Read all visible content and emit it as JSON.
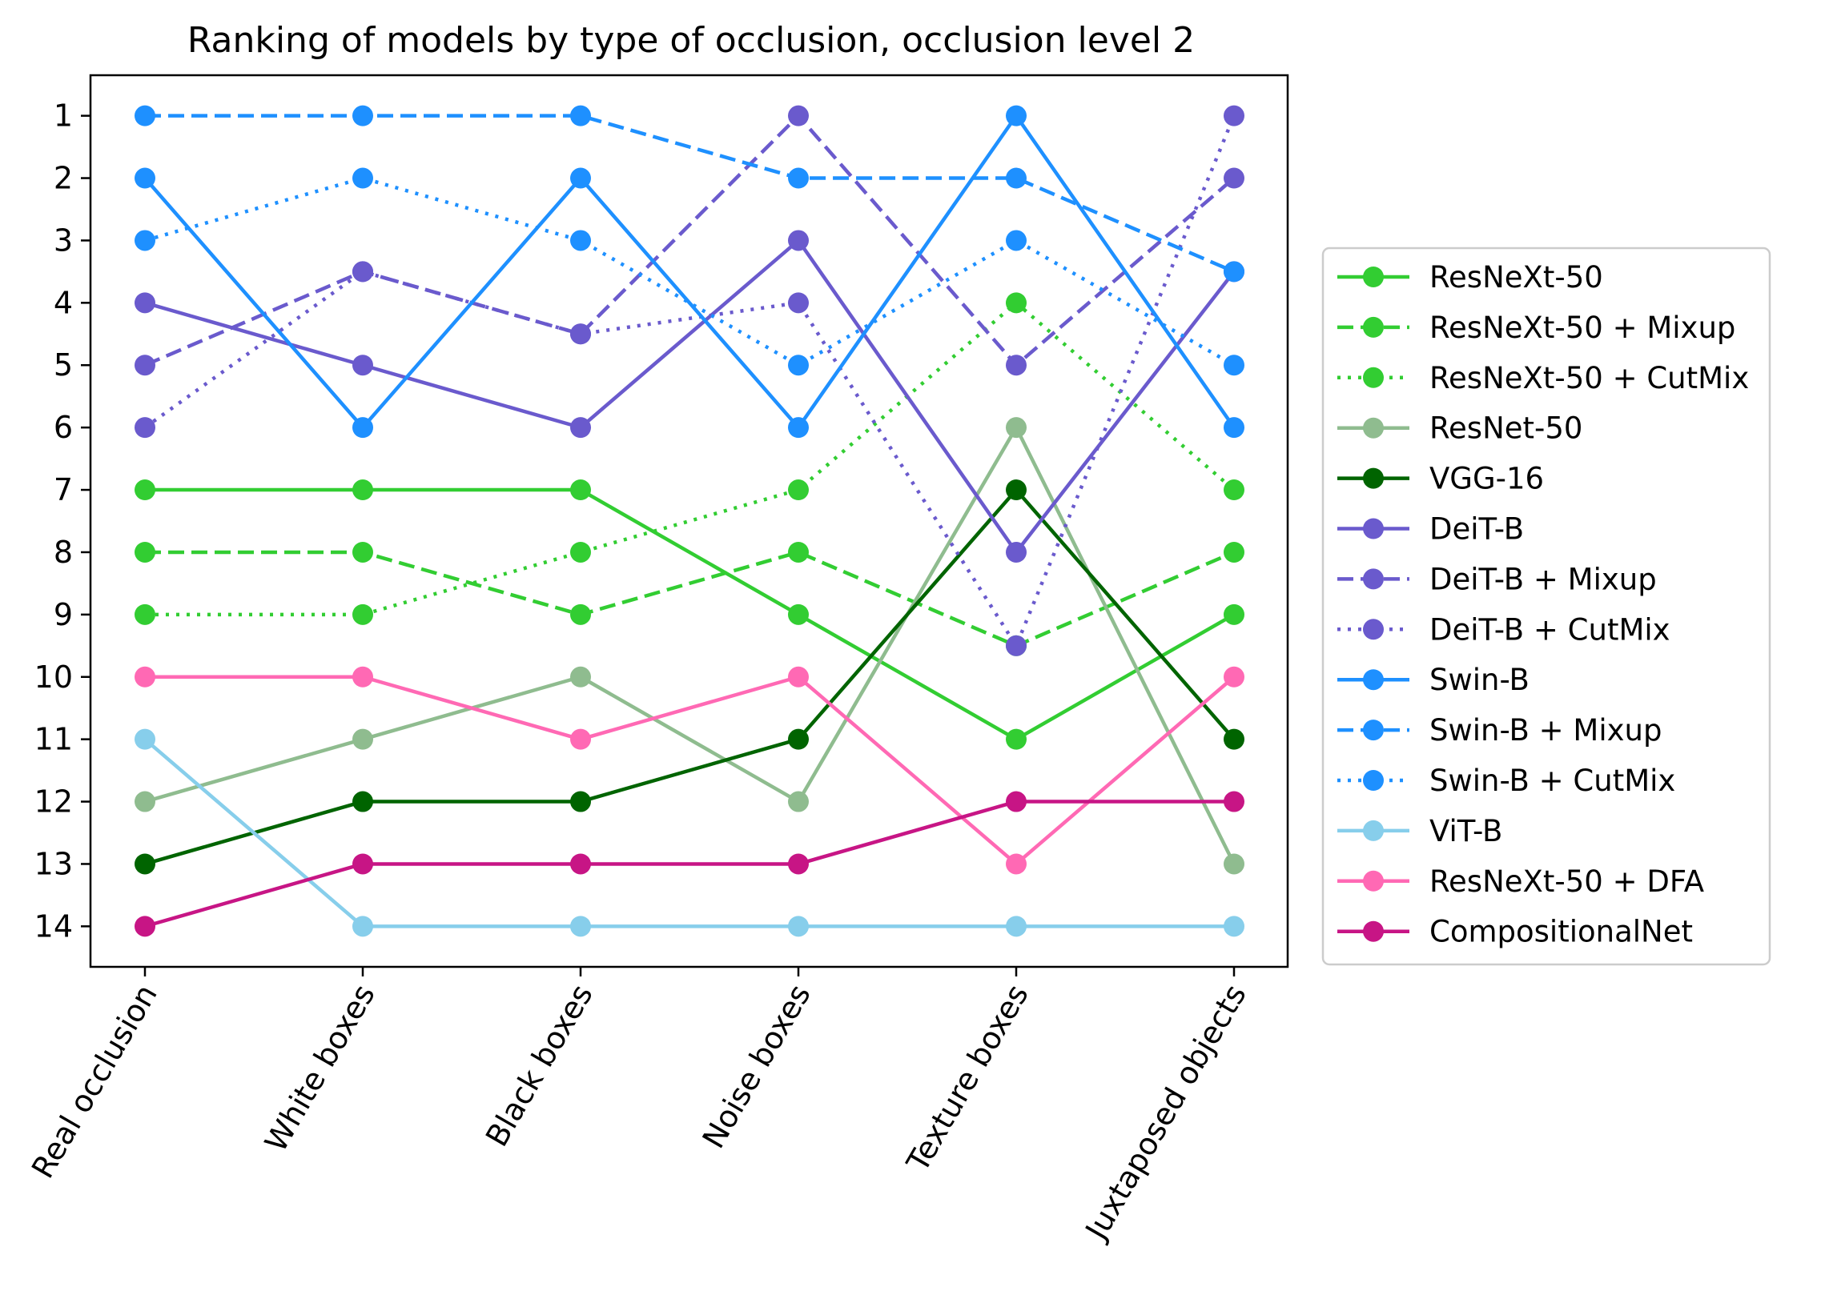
{
  "chart_data": {
    "type": "line",
    "title": "Ranking of models by type of occlusion, occlusion level 2",
    "xlabel": "",
    "ylabel": "",
    "categories": [
      "Real occlusion",
      "White boxes",
      "Black boxes",
      "Noise boxes",
      "Texture boxes",
      "Juxtaposed objects"
    ],
    "yticks": [
      "1",
      "2",
      "3",
      "4",
      "5",
      "6",
      "7",
      "8",
      "9",
      "10",
      "11",
      "12",
      "13",
      "14"
    ],
    "ylim": [
      14.65,
      0.35
    ],
    "y_inverted": true,
    "grid": false,
    "legend_position": "right",
    "series": [
      {
        "name": "ResNeXt-50",
        "color": "#32cd32",
        "style": "solid",
        "values": [
          7,
          7,
          7,
          9,
          11,
          9
        ]
      },
      {
        "name": "ResNeXt-50 + Mixup",
        "color": "#32cd32",
        "style": "dashed",
        "values": [
          8,
          8,
          9,
          8,
          9.5,
          8
        ]
      },
      {
        "name": "ResNeXt-50 + CutMix",
        "color": "#32cd32",
        "style": "dotted",
        "values": [
          9,
          9,
          8,
          7,
          4,
          7
        ]
      },
      {
        "name": "ResNet-50",
        "color": "#8fbc8f",
        "style": "solid",
        "values": [
          12,
          11,
          10,
          12,
          6,
          13
        ]
      },
      {
        "name": "VGG-16",
        "color": "#006400",
        "style": "solid",
        "values": [
          13,
          12,
          12,
          11,
          7,
          11
        ]
      },
      {
        "name": "DeiT-B",
        "color": "#6a5acd",
        "style": "solid",
        "values": [
          4,
          5,
          6,
          3,
          8,
          3.5
        ]
      },
      {
        "name": "DeiT-B + Mixup",
        "color": "#6a5acd",
        "style": "dashed",
        "values": [
          5,
          3.5,
          4.5,
          1,
          5,
          2
        ]
      },
      {
        "name": "DeiT-B + CutMix",
        "color": "#6a5acd",
        "style": "dotted",
        "values": [
          6,
          3.5,
          4.5,
          4,
          9.5,
          1
        ]
      },
      {
        "name": "Swin-B",
        "color": "#1e90ff",
        "style": "solid",
        "values": [
          2,
          6,
          2,
          6,
          1,
          6
        ]
      },
      {
        "name": "Swin-B + Mixup",
        "color": "#1e90ff",
        "style": "dashed",
        "values": [
          1,
          1,
          1,
          2,
          2,
          3.5
        ]
      },
      {
        "name": "Swin-B + CutMix",
        "color": "#1e90ff",
        "style": "dotted",
        "values": [
          3,
          2,
          3,
          5,
          3,
          5
        ]
      },
      {
        "name": "ViT-B",
        "color": "#87ceeb",
        "style": "solid",
        "values": [
          11,
          14,
          14,
          14,
          14,
          14
        ]
      },
      {
        "name": "ResNeXt-50 + DFA",
        "color": "#ff69b4",
        "style": "solid",
        "values": [
          10,
          10,
          11,
          10,
          13,
          10
        ]
      },
      {
        "name": "CompositionalNet",
        "color": "#c71585",
        "style": "solid",
        "values": [
          14,
          13,
          13,
          13,
          12,
          12
        ]
      }
    ]
  }
}
